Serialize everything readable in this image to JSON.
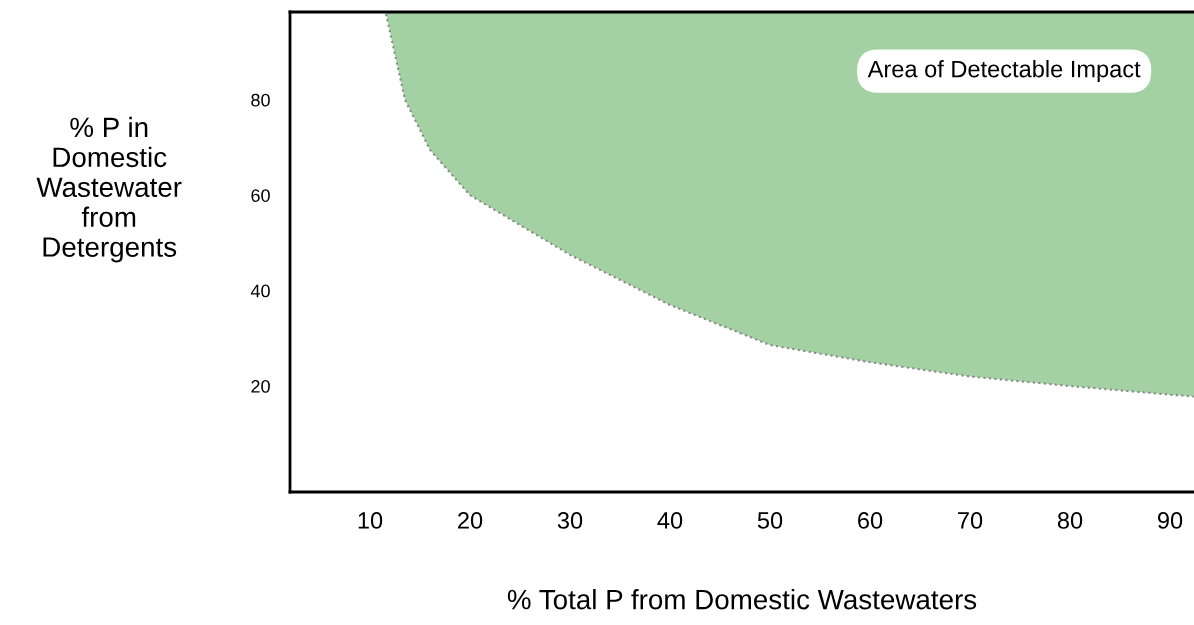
{
  "chart_data": {
    "type": "line",
    "xlabel": "% Total P from Domestic Wastewaters",
    "ylabel": "% P in\nDomestic\nWastewater\nfrom\nDetergents",
    "annotations": [
      "Area of Detectable Impact"
    ],
    "x": [
      11.6,
      13.5,
      16,
      20,
      30,
      40,
      50,
      60,
      70,
      80,
      90,
      92.4
    ],
    "series": [
      {
        "color": "#888888",
        "line_style": "dotted",
        "values": [
          98,
          80,
          69.5,
          60,
          47.5,
          37,
          28.6,
          25,
          22,
          20,
          18.2,
          17.8
        ],
        "lower": [
          98,
          80,
          69.5,
          60,
          47.5,
          37,
          28.6,
          25,
          22,
          20,
          18.2,
          17.8
        ],
        "upper": [
          98.4,
          98.4,
          98.4,
          98.4,
          98.4,
          98.4,
          98.4,
          98.4,
          98.4,
          98.4,
          98.4,
          98.4
        ]
      }
    ],
    "xlim": [
      2,
      92.4
    ],
    "ylim": [
      -2.2,
      98.4
    ],
    "xticks": [
      10,
      20,
      30,
      40,
      50,
      60,
      70,
      80,
      90
    ],
    "yticks": [
      20,
      40,
      60,
      80
    ],
    "grid": false,
    "legend": false
  }
}
